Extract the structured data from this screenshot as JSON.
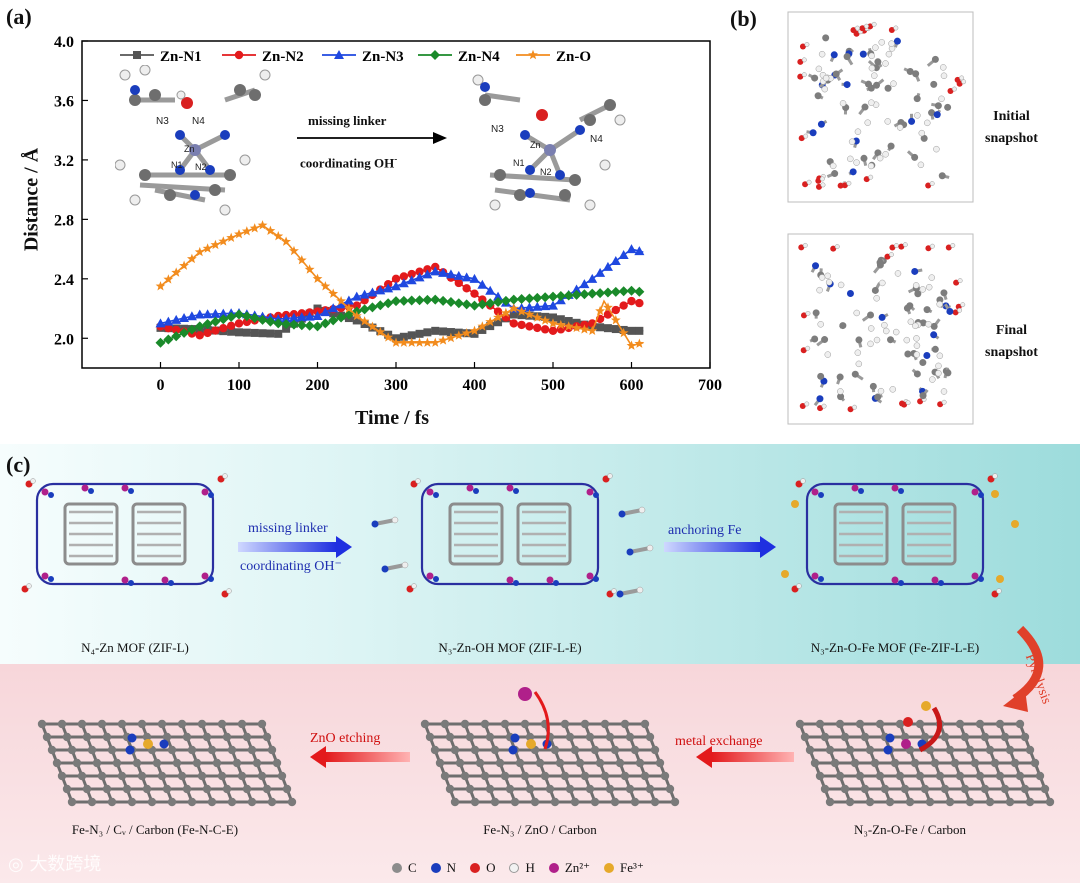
{
  "panels": {
    "a": "(a)",
    "b": "(b)",
    "c": "(c)"
  },
  "chart_data": {
    "type": "line",
    "xlabel": "Time / fs",
    "ylabel": "Distance / Å",
    "xlim": [
      -100,
      700
    ],
    "ylim": [
      1.8,
      4.0
    ],
    "xticks": [
      0,
      100,
      200,
      300,
      400,
      500,
      600,
      700
    ],
    "yticks": [
      2.0,
      2.4,
      2.8,
      3.2,
      3.6,
      4.0
    ],
    "legend_position": "top",
    "series": [
      {
        "name": "Zn-N1",
        "color": "#555555",
        "marker": "square",
        "x": [
          0,
          50,
          100,
          150,
          200,
          250,
          300,
          350,
          400,
          450,
          500,
          550,
          600,
          615
        ],
        "y": [
          2.07,
          2.06,
          2.04,
          2.03,
          2.2,
          2.12,
          2.0,
          2.05,
          2.03,
          2.16,
          2.14,
          2.08,
          2.05,
          2.05
        ]
      },
      {
        "name": "Zn-N2",
        "color": "#e31a1c",
        "marker": "circle",
        "x": [
          0,
          50,
          100,
          150,
          200,
          250,
          300,
          350,
          400,
          450,
          500,
          550,
          600,
          615
        ],
        "y": [
          2.08,
          2.02,
          2.1,
          2.15,
          2.18,
          2.22,
          2.4,
          2.48,
          2.3,
          2.1,
          2.05,
          2.1,
          2.25,
          2.23
        ]
      },
      {
        "name": "Zn-N3",
        "color": "#1f48e0",
        "marker": "triangle",
        "x": [
          0,
          50,
          100,
          150,
          200,
          250,
          300,
          350,
          400,
          450,
          500,
          550,
          600,
          615
        ],
        "y": [
          2.1,
          2.16,
          2.17,
          2.13,
          2.15,
          2.28,
          2.35,
          2.45,
          2.4,
          2.2,
          2.22,
          2.4,
          2.6,
          2.58
        ]
      },
      {
        "name": "Zn-N4",
        "color": "#1a8a2a",
        "marker": "diamond",
        "x": [
          0,
          50,
          100,
          150,
          200,
          250,
          300,
          350,
          400,
          450,
          500,
          550,
          600,
          615
        ],
        "y": [
          1.97,
          2.08,
          2.16,
          2.1,
          2.08,
          2.18,
          2.25,
          2.26,
          2.22,
          2.26,
          2.28,
          2.3,
          2.32,
          2.31
        ]
      },
      {
        "name": "Zn-O",
        "color": "#f28c1e",
        "marker": "star",
        "x": [
          0,
          50,
          100,
          130,
          160,
          200,
          250,
          300,
          350,
          400,
          450,
          500,
          550,
          565,
          600,
          615
        ],
        "y": [
          2.35,
          2.58,
          2.7,
          2.76,
          2.65,
          2.4,
          2.15,
          1.97,
          1.97,
          2.05,
          2.2,
          2.1,
          2.05,
          2.25,
          1.95,
          1.97
        ]
      }
    ]
  },
  "inset": {
    "arrow_top": "missing linker",
    "arrow_bottom": "coordinating OH",
    "arrow_bottom_sup": "-",
    "left_atoms": [
      "N3",
      "N4",
      "Zn",
      "N1",
      "N2"
    ],
    "right_atoms": [
      "N3",
      "N4",
      "Zn",
      "N1",
      "N2"
    ]
  },
  "panel_b": {
    "initial": "Initial\nsnapshot",
    "final": "Final\nsnapshot"
  },
  "panel_c": {
    "row1": [
      {
        "caption": "N₄-Zn MOF (ZIF-L)"
      },
      {
        "caption": "N₃-Zn-OH  MOF  (ZIF-L-E)"
      },
      {
        "caption": "N₃-Zn-O-Fe MOF  (Fe-ZIF-L-E)"
      }
    ],
    "arrows": {
      "missing_linker": "missing linker",
      "coordinating_oh": "coordinating OH⁻",
      "anchoring_fe": "anchoring Fe",
      "pyrolysis": "Pyrolysis",
      "metal_exchange": "metal exchange",
      "zno_etching": "ZnO etching"
    },
    "row2": [
      {
        "caption": "Fe-N₃ / Cᵥ / Carbon (Fe-N-C-E)"
      },
      {
        "caption": "Fe-N₃ / ZnO / Carbon"
      },
      {
        "caption": "N₃-Zn-O-Fe / Carbon"
      }
    ],
    "atom_legend": [
      {
        "symbol": "C",
        "color": "#8c8c8c"
      },
      {
        "symbol": "N",
        "color": "#1a3dbd"
      },
      {
        "symbol": "O",
        "color": "#d92020"
      },
      {
        "symbol": "H",
        "color": "#f2f2f2"
      },
      {
        "symbol": "Zn²⁺",
        "color": "#b0208a"
      },
      {
        "symbol": "Fe³⁺",
        "color": "#e6a92a"
      }
    ]
  },
  "watermark": "大数跨境"
}
